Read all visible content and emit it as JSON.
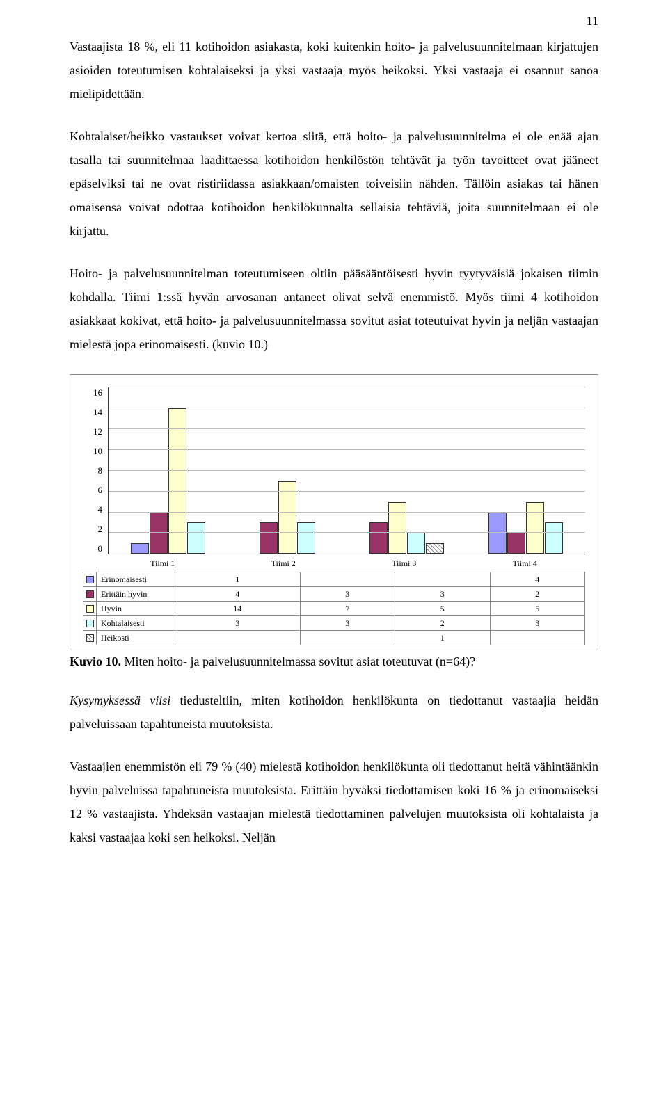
{
  "page_number": "11",
  "para1": "Vastaajista 18 %, eli 11 kotihoidon asiakasta, koki kuitenkin hoito- ja palvelusuunnitelmaan kirjattujen asioiden toteutumisen kohtalaiseksi ja yksi vastaaja myös heikoksi. Yksi vastaaja ei osannut sanoa mielipidettään.",
  "para2": "Kohtalaiset/heikko vastaukset voivat kertoa siitä, että hoito- ja palvelusuunnitelma ei ole enää ajan tasalla tai suunnitelmaa laadittaessa kotihoidon henkilöstön tehtävät ja työn tavoitteet ovat jääneet epäselviksi tai ne ovat ristiriidassa asiakkaan/omaisten toiveisiin nähden. Tällöin asiakas tai hänen omaisensa voivat odottaa kotihoidon henkilökunnalta sellaisia tehtäviä, joita suunnitelmaan ei ole kirjattu.",
  "para3": "Hoito- ja palvelusuunnitelman toteutumiseen oltiin pääsääntöisesti hyvin tyytyväisiä jokaisen tiimin kohdalla. Tiimi 1:ssä hyvän arvosanan antaneet olivat selvä enemmistö. Myös tiimi 4 kotihoidon asiakkaat kokivat, että hoito- ja palvelusuunnitelmassa sovitut asiat toteutuivat hyvin ja neljän vastaajan mielestä jopa erinomaisesti. (kuvio 10.)",
  "chart": {
    "type": "bar",
    "categories": [
      "Tiimi 1",
      "Tiimi 2",
      "Tiimi 3",
      "Tiimi 4"
    ],
    "series": [
      {
        "name": "Erinomaisesti",
        "color": "#9999ff",
        "values": [
          1,
          null,
          null,
          4
        ]
      },
      {
        "name": "Erittäin hyvin",
        "color": "#993366",
        "values": [
          4,
          3,
          3,
          2
        ]
      },
      {
        "name": "Hyvin",
        "color": "#ffffcc",
        "values": [
          14,
          7,
          5,
          5
        ]
      },
      {
        "name": "Kohtalaisesti",
        "color": "#ccffff",
        "values": [
          3,
          3,
          2,
          3
        ]
      },
      {
        "name": "Heikosti",
        "color": "hatched",
        "values": [
          null,
          null,
          1,
          null
        ]
      }
    ],
    "ymax": 16,
    "yticks": [
      16,
      14,
      12,
      10,
      8,
      6,
      4,
      2,
      0
    ],
    "grid_color": "#bbbbbb",
    "border_color": "#888888",
    "bg": "#ffffff",
    "label_fontsize": 12
  },
  "caption_bold": "Kuvio 10.",
  "caption_rest": " Miten hoito- ja palvelusuunnitelmassa sovitut asiat toteutuvat (n=64)?",
  "para4_lead": "Kysymyksessä viisi",
  "para4_rest": " tiedusteltiin, miten kotihoidon henkilökunta on tiedottanut vastaajia heidän palveluissaan tapahtuneista muutoksista.",
  "para5": "Vastaajien enemmistön eli 79 % (40) mielestä kotihoidon henkilökunta oli tiedottanut heitä vähintäänkin hyvin palveluissa tapahtuneista muutoksista. Erittäin hyväksi tiedottamisen koki 16 % ja erinomaiseksi 12 % vastaajista. Yhdeksän vastaajan mielestä tiedottaminen palvelujen muutoksista oli kohtalaista ja kaksi vastaajaa koki sen heikoksi. Neljän"
}
